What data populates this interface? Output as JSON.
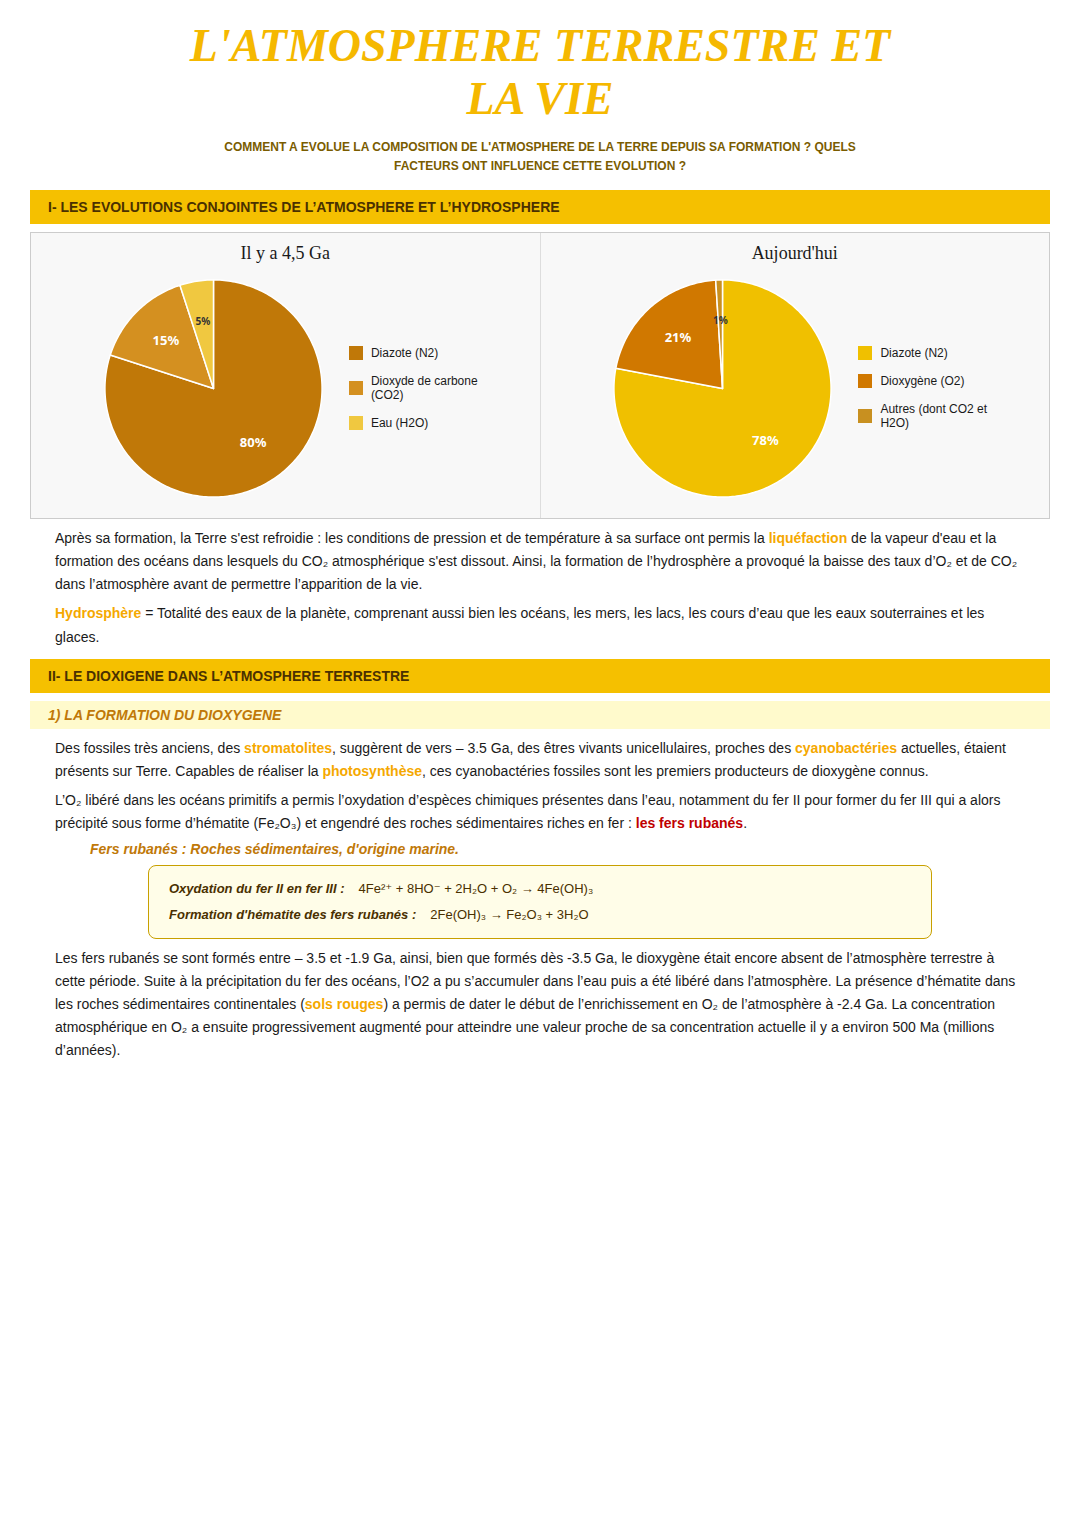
{
  "annotations": [
    {
      "type": "title",
      "color": "#F5B800",
      "text": "L'ATMOSPHERE TERRESTRE ET\nLA VIE"
    },
    {
      "type": "subtitle",
      "color": "#7A5C00",
      "text": "COMMENT A EVOLUE LA COMPOSITION DE L'ATMOSPHERE DE LA TERRE DEPUIS SA FORMATION ? QUELS\nFACTEURS ONT INFLUENCE CETTE EVOLUTION ?"
    },
    {
      "type": "banner",
      "color": "#4A3000",
      "text": "I- LES EVOLUTIONS CONJOINTES DE L’ATMOSPHERE ET L’HYDROSPHERE"
    },
    {
      "type": "paragraph",
      "color": "#1A1A1A",
      "text": [
        {
          "text": "Après sa formation, la Terre s'est refroidie : les conditions de pression et de température à sa surface ont permis la "
        },
        {
          "text": "liquéfaction",
          "color": "#F5A800"
        },
        {
          "text": " de la vapeur d'eau et la formation des océans dans lesquels du CO₂ atmosphérique s'est dissout. Ainsi, la formation de l’hydrosphère a provoqué la baisse des taux d’O₂ et de CO₂ dans l’atmosphère avant de permettre l’apparition de la vie."
        }
      ]
    },
    {
      "type": "paragraph",
      "color": "#1A1A1A",
      "text": [
        {
          "text": "Hydrosphère",
          "color": "#F5A800"
        },
        {
          "text": " = Totalité des eaux de la planète, comprenant aussi bien les océans, les mers, les lacs, les cours d’eau que les eaux souterraines et les glaces."
        }
      ]
    },
    {
      "type": "banner",
      "color": "#4A3000",
      "text": "II- LE DIOXIGENE DANS L’ATMOSPHERE TERRESTRE"
    },
    {
      "type": "subbanner",
      "color": "#C07808",
      "text": "1) LA FORMATION DU DIOXYGENE"
    },
    {
      "type": "paragraph",
      "color": "#1A1A1A",
      "text": [
        {
          "text": "Des fossiles très anciens, des "
        },
        {
          "text": "stromatolites",
          "color": "#F5A800"
        },
        {
          "text": ", suggèrent de vers – 3.5 Ga, des êtres vivants unicellulaires, proches des "
        },
        {
          "text": "cyanobactéries",
          "color": "#F5A800"
        },
        {
          "text": " actuelles, étaient présents sur Terre. Capables de réaliser la "
        },
        {
          "text": "photosynthèse",
          "color": "#F5A800"
        },
        {
          "text": ", ces cyanobactéries fossiles sont les premiers producteurs de dioxygène connus."
        }
      ]
    },
    {
      "type": "paragraph",
      "color": "#1A1A1A",
      "text": [
        {
          "text": "L’O₂ libéré dans les océans primitifs a permis l’oxydation d’espèces chimiques présentes dans l’eau, notamment du fer II pour former du fer III qui a alors précipité sous forme d’hématite (Fe₂O₃) et engendré des roches sédimentaires riches en fer : "
        },
        {
          "text": "les fers rubanés",
          "color": "#C00000"
        },
        {
          "text": "."
        }
      ]
    },
    {
      "type": "label",
      "color": "#C07808",
      "text": "Fers rubanés : Roches sédimentaires, d'origine marine."
    },
    {
      "type": "formula",
      "color": "#4A3000",
      "text": [
        {
          "text": "Oxydation du fer II en fer III :"
        },
        {
          "text": "4Fe²⁺ + 8HO⁻ + 2H₂O + O₂ → 4Fe(OH)₃"
        }
      ]
    },
    {
      "type": "formula",
      "color": "#4A3000",
      "text": [
        {
          "text": "Formation d'hématite des fers rubanés :"
        },
        {
          "text": "2Fe(OH)₃ → Fe₂O₃ + 3H₂O"
        }
      ]
    },
    {
      "type": "paragraph",
      "color": "#1A1A1A",
      "text": [
        {
          "text": "Les fers rubanés se sont formés entre – 3.5 et -1.9 Ga, ainsi, bien que formés dès -3.5 Ga, le dioxygène était encore absent de l’atmosphère terrestre à cette période. Suite à la précipitation du fer des océans, l’O2 a pu s’accumuler dans l’eau puis a été libéré dans l’atmosphère. La présence d’hématite dans les roches sédimentaires continentales ("
        },
        {
          "text": "sols rouges",
          "color": "#F5A800"
        },
        {
          "text": ") a permis de dater le début de l’enrichissement en O₂ de l’atmosphère à -2.4 Ga. La concentration atmosphérique en O₂ a ensuite progressivement augmenté pour atteindre une valeur proche de sa concentration actuelle il y a environ 500 Ma (millions d’années)."
        }
      ]
    }
  ],
  "chart_data": [
    {
      "type": "pie",
      "title": "Il y a 4,5 Ga",
      "categories": [
        "Diazote (N2)",
        "Dioxyde de carbone\n(CO2)",
        "Eau (H2O)"
      ],
      "values": [
        80,
        15,
        5
      ],
      "value_labels": [
        "80%",
        "15%",
        "5%"
      ],
      "colors": [
        "#C07808",
        "#D49020",
        "#F0C840"
      ],
      "data_labels": true,
      "legend": "right"
    },
    {
      "type": "pie",
      "title": "Aujourd'hui",
      "categories": [
        "Diazote (N2)",
        "Dioxygène (O2)",
        "Autres (dont CO2 et\nH2O)"
      ],
      "values": [
        78,
        21,
        1
      ],
      "value_labels": [
        "78%",
        "21%",
        "1%"
      ],
      "colors": [
        "#F0C000",
        "#D07800",
        "#C89020"
      ],
      "data_labels": true,
      "legend": "right"
    }
  ]
}
